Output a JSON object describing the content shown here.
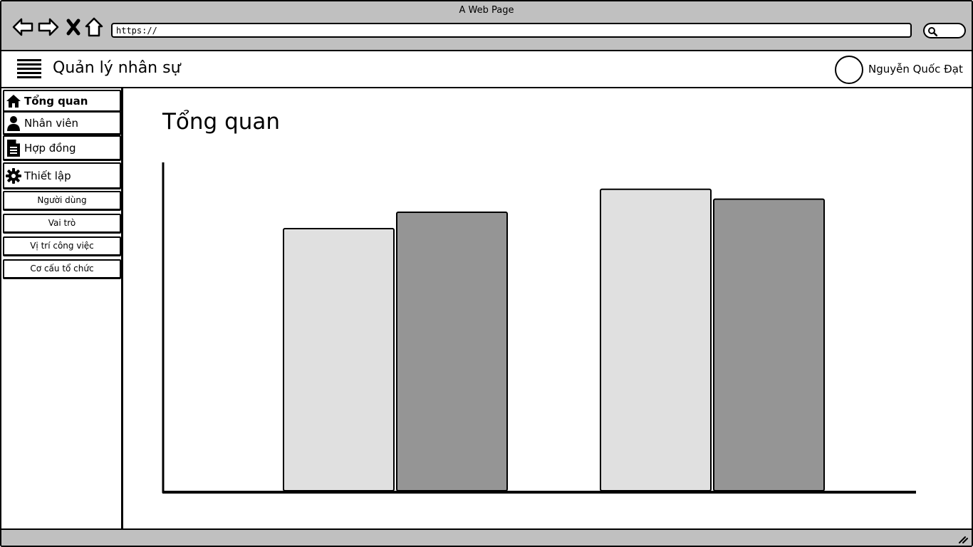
{
  "window": {
    "title": "A Web Page"
  },
  "address_bar": {
    "value": "https://"
  },
  "header": {
    "app_title": "Quản lý nhân sự",
    "user_name": "Nguyễn Quốc Đạt"
  },
  "sidebar": {
    "items": [
      {
        "label": "Tổng quan",
        "icon": "home-icon",
        "active": true
      },
      {
        "label": "Nhân viên",
        "icon": "user-icon",
        "active": false
      },
      {
        "label": "Hợp đồng",
        "icon": "document-icon",
        "active": false
      },
      {
        "label": "Thiết lập",
        "icon": "gear-icon",
        "active": false
      }
    ],
    "sub_items": [
      {
        "label": "Người dùng"
      },
      {
        "label": "Vai trò"
      },
      {
        "label": "Vị trí công việc"
      },
      {
        "label": "Cơ cấu tổ chức"
      }
    ]
  },
  "main": {
    "page_title": "Tổng quan"
  },
  "chart_data": {
    "type": "bar",
    "title": "",
    "xlabel": "",
    "ylabel": "",
    "categories": [
      "",
      ""
    ],
    "series": [
      {
        "values": [
          80,
          92
        ],
        "color": "#e0e0e0"
      },
      {
        "values": [
          85,
          89
        ],
        "color": "#959595"
      }
    ],
    "ylim": [
      0,
      100
    ],
    "grid": false,
    "legend": "none"
  }
}
